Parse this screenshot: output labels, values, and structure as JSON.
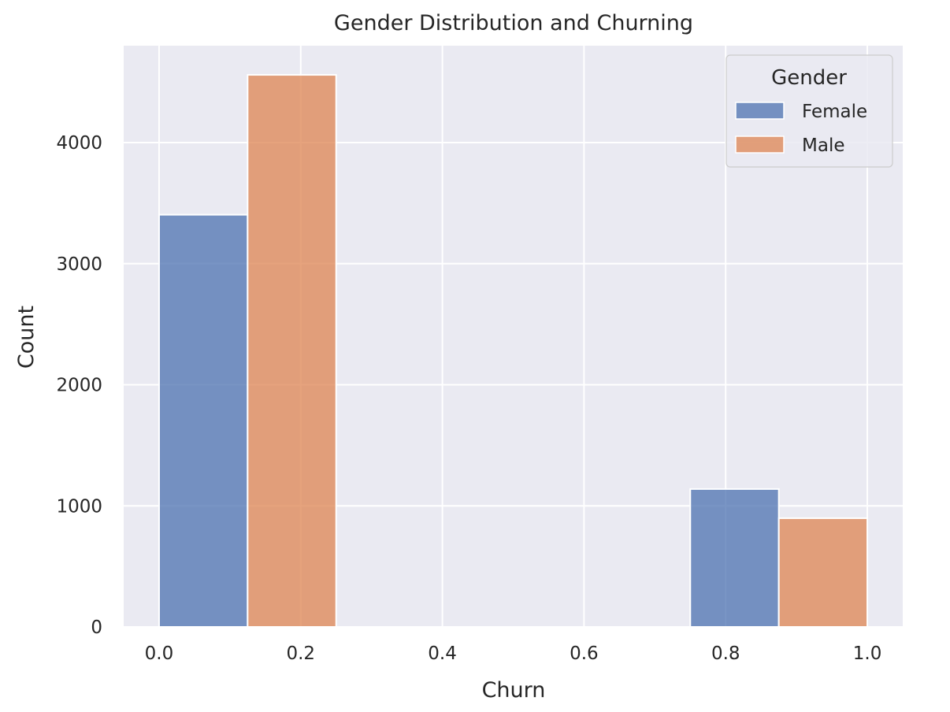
{
  "chart_data": {
    "type": "bar",
    "title": "Gender Distribution and Churning",
    "xlabel": "Churn",
    "ylabel": "Count",
    "xlim": [
      -0.05,
      1.05
    ],
    "ylim": [
      0,
      4800
    ],
    "x_ticks": [
      0.0,
      0.2,
      0.4,
      0.6,
      0.8,
      1.0
    ],
    "x_tick_labels": [
      "0.0",
      "0.2",
      "0.4",
      "0.6",
      "0.8",
      "1.0"
    ],
    "y_ticks": [
      0,
      1000,
      2000,
      3000,
      4000
    ],
    "y_tick_labels": [
      "0",
      "1000",
      "2000",
      "3000",
      "4000"
    ],
    "grid": true,
    "legend": {
      "title": "Gender",
      "placement": "top-right"
    },
    "series": [
      {
        "name": "Female",
        "color": "#4c72b0",
        "bars": [
          {
            "x0": 0.0,
            "x1": 0.125,
            "value": 3404
          },
          {
            "x0": 0.75,
            "x1": 0.875,
            "value": 1139
          }
        ]
      },
      {
        "name": "Male",
        "color": "#dd8452",
        "bars": [
          {
            "x0": 0.125,
            "x1": 0.25,
            "value": 4559
          },
          {
            "x0": 0.875,
            "x1": 1.0,
            "value": 898
          }
        ]
      }
    ]
  },
  "style": {
    "plot_background": "#eaeaf2",
    "grid_color": "#ffffff",
    "bar_opacity": 0.75,
    "bar_edge": "#ffffff"
  }
}
